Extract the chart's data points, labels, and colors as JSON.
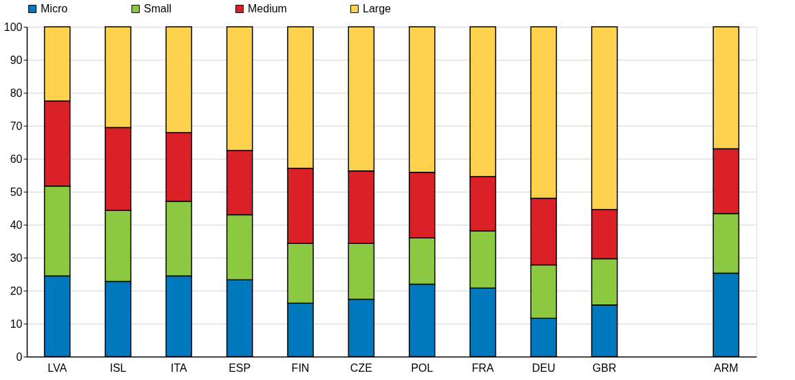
{
  "chart_data": {
    "type": "bar",
    "stacked": true,
    "categories": [
      "LVA",
      "ISL",
      "ITA",
      "ESP",
      "FIN",
      "CZE",
      "POL",
      "FRA",
      "DEU",
      "GBR",
      null,
      "ARM"
    ],
    "series": [
      {
        "name": "Micro",
        "color": "#0078be",
        "values": [
          24.5,
          22.8,
          24.5,
          23.3,
          16.2,
          17.4,
          22.0,
          20.8,
          11.6,
          15.7,
          null,
          25.3
        ]
      },
      {
        "name": "Small",
        "color": "#8cc841",
        "values": [
          27.2,
          21.5,
          22.6,
          19.7,
          18.1,
          16.9,
          14.0,
          17.3,
          16.2,
          14.0,
          null,
          18.1
        ]
      },
      {
        "name": "Medium",
        "color": "#da2128",
        "values": [
          25.8,
          25.2,
          20.8,
          19.5,
          22.8,
          22.0,
          19.9,
          16.5,
          20.2,
          14.9,
          null,
          19.6
        ]
      },
      {
        "name": "Large",
        "color": "#ffd24d",
        "values": [
          22.5,
          30.5,
          32.1,
          37.5,
          42.9,
          43.7,
          44.1,
          45.4,
          52.0,
          55.4,
          null,
          37.0
        ]
      }
    ],
    "ylim": [
      0,
      100
    ],
    "yticks": [
      0,
      10,
      20,
      30,
      40,
      50,
      60,
      70,
      80,
      90,
      100
    ],
    "grid": "y",
    "legend": "top"
  }
}
